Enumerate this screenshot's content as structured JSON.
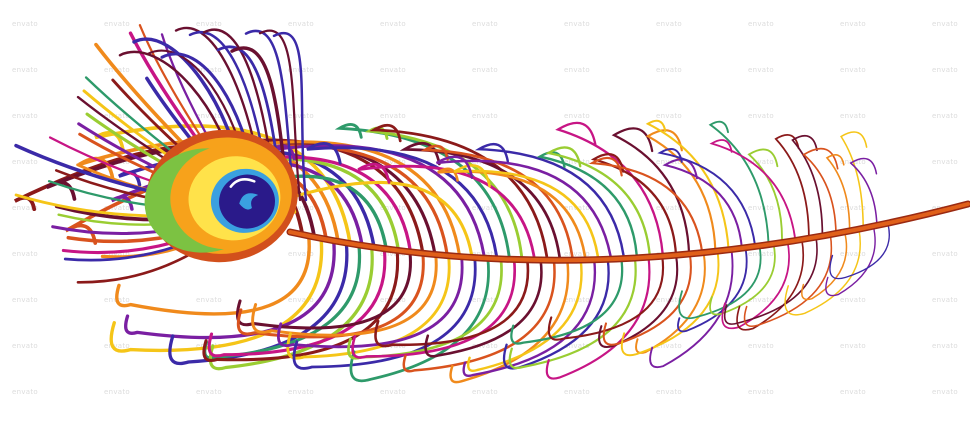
{
  "image": {
    "subject": "peacock-feather",
    "background": "#ffffff",
    "watermark_text": "envato",
    "colors": {
      "rachis": "#e0601a",
      "rachis_dark": "#9a2a12",
      "barb_palette": [
        "#8b1a1a",
        "#6a1030",
        "#d9531e",
        "#f08a1c",
        "#f5c518",
        "#7a1fa2",
        "#3b2aa8",
        "#2e9a6a",
        "#9acd32",
        "#c71585"
      ],
      "eye_outer": "#d2501c",
      "eye_orange": "#f7a21b",
      "eye_green": "#7cc242",
      "eye_yellow": "#ffe24a",
      "eye_blue_ring": "#3aa0e0",
      "eye_core": "#2a1a8a",
      "eye_highlight": "#ffffff"
    }
  }
}
